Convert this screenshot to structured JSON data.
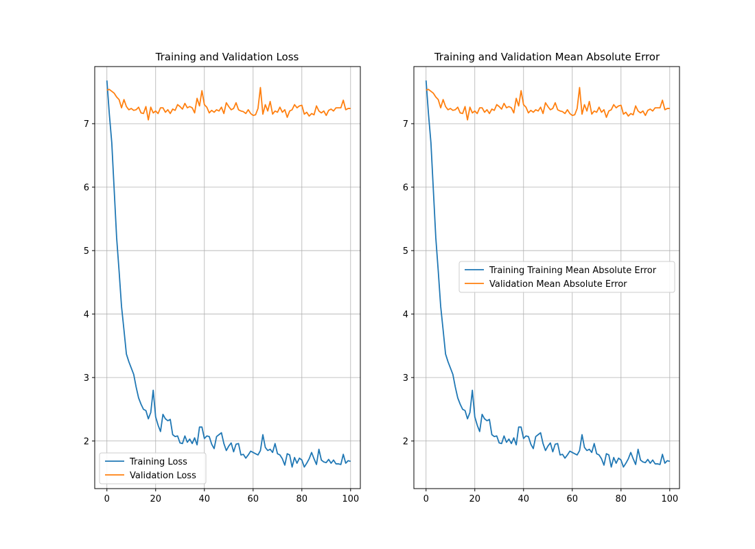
{
  "chart_data": [
    {
      "type": "line",
      "title": "Training and Validation Loss",
      "xlabel": "",
      "ylabel": "",
      "xlim": [
        -5,
        104
      ],
      "ylim": [
        1.25,
        7.9
      ],
      "xticks": [
        0,
        20,
        40,
        60,
        80,
        100
      ],
      "yticks": [
        2,
        3,
        4,
        5,
        6,
        7
      ],
      "grid": true,
      "legend_position": "lower-left",
      "series": [
        {
          "name": "Training Loss",
          "color": "#1f77b4",
          "x_start": 0,
          "values": [
            7.68,
            7.15,
            6.7,
            5.95,
            5.2,
            4.68,
            4.12,
            3.75,
            3.37,
            3.25,
            3.15,
            3.05,
            2.85,
            2.68,
            2.58,
            2.5,
            2.48,
            2.35,
            2.45,
            2.8,
            2.38,
            2.25,
            2.15,
            2.42,
            2.35,
            2.32,
            2.34,
            2.1,
            2.07,
            2.08,
            1.97,
            1.96,
            2.08,
            1.98,
            2.03,
            1.96,
            2.05,
            1.94,
            2.22,
            2.22,
            2.04,
            2.08,
            2.07,
            1.95,
            1.88,
            2.07,
            2.1,
            2.13,
            1.96,
            1.85,
            1.92,
            1.97,
            1.83,
            1.95,
            1.96,
            1.78,
            1.79,
            1.73,
            1.78,
            1.84,
            1.82,
            1.8,
            1.78,
            1.85,
            2.1,
            1.9,
            1.85,
            1.87,
            1.82,
            1.96,
            1.8,
            1.78,
            1.72,
            1.62,
            1.8,
            1.78,
            1.59,
            1.74,
            1.65,
            1.73,
            1.7,
            1.59,
            1.65,
            1.72,
            1.82,
            1.72,
            1.63,
            1.87,
            1.7,
            1.67,
            1.66,
            1.71,
            1.65,
            1.7,
            1.64,
            1.64,
            1.63,
            1.79,
            1.65,
            1.69,
            1.68
          ]
        },
        {
          "name": "Validation Loss",
          "color": "#ff7f0e",
          "x_start": 0,
          "values": [
            7.53,
            7.54,
            7.51,
            7.48,
            7.42,
            7.38,
            7.25,
            7.38,
            7.27,
            7.22,
            7.24,
            7.21,
            7.22,
            7.26,
            7.17,
            7.16,
            7.27,
            7.06,
            7.26,
            7.17,
            7.2,
            7.16,
            7.25,
            7.25,
            7.18,
            7.22,
            7.16,
            7.23,
            7.21,
            7.3,
            7.27,
            7.23,
            7.32,
            7.25,
            7.27,
            7.25,
            7.17,
            7.4,
            7.28,
            7.52,
            7.3,
            7.26,
            7.17,
            7.21,
            7.18,
            7.22,
            7.2,
            7.26,
            7.16,
            7.33,
            7.27,
            7.22,
            7.24,
            7.33,
            7.22,
            7.2,
            7.19,
            7.16,
            7.22,
            7.16,
            7.13,
            7.14,
            7.24,
            7.57,
            7.15,
            7.3,
            7.2,
            7.35,
            7.15,
            7.2,
            7.18,
            7.26,
            7.18,
            7.22,
            7.1,
            7.2,
            7.22,
            7.3,
            7.25,
            7.28,
            7.29,
            7.15,
            7.18,
            7.12,
            7.16,
            7.14,
            7.28,
            7.2,
            7.17,
            7.2,
            7.13,
            7.21,
            7.23,
            7.2,
            7.25,
            7.25,
            7.25,
            7.37,
            7.22,
            7.24,
            7.24
          ]
        }
      ],
      "legend": [
        "Training Loss",
        "Validation Loss"
      ]
    },
    {
      "type": "line",
      "title": "Training and Validation Mean Absolute Error",
      "xlabel": "",
      "ylabel": "",
      "xlim": [
        -5,
        104
      ],
      "ylim": [
        1.25,
        7.9
      ],
      "xticks": [
        0,
        20,
        40,
        60,
        80,
        100
      ],
      "yticks": [
        2,
        3,
        4,
        5,
        6,
        7
      ],
      "grid": true,
      "legend_position": "center-right",
      "series": [
        {
          "name": "Training Training Mean Absolute Error",
          "color": "#1f77b4",
          "x_start": 0,
          "values": [
            7.68,
            7.15,
            6.7,
            5.95,
            5.2,
            4.68,
            4.12,
            3.75,
            3.37,
            3.25,
            3.15,
            3.05,
            2.85,
            2.68,
            2.58,
            2.5,
            2.48,
            2.35,
            2.45,
            2.8,
            2.38,
            2.25,
            2.15,
            2.42,
            2.35,
            2.32,
            2.34,
            2.1,
            2.07,
            2.08,
            1.97,
            1.96,
            2.08,
            1.98,
            2.03,
            1.96,
            2.05,
            1.94,
            2.22,
            2.22,
            2.04,
            2.08,
            2.07,
            1.95,
            1.88,
            2.07,
            2.1,
            2.13,
            1.96,
            1.85,
            1.92,
            1.97,
            1.83,
            1.95,
            1.96,
            1.78,
            1.79,
            1.73,
            1.78,
            1.84,
            1.82,
            1.8,
            1.78,
            1.85,
            2.1,
            1.9,
            1.85,
            1.87,
            1.82,
            1.96,
            1.8,
            1.78,
            1.72,
            1.62,
            1.8,
            1.78,
            1.59,
            1.74,
            1.65,
            1.73,
            1.7,
            1.59,
            1.65,
            1.72,
            1.82,
            1.72,
            1.63,
            1.87,
            1.7,
            1.67,
            1.66,
            1.71,
            1.65,
            1.7,
            1.64,
            1.64,
            1.63,
            1.79,
            1.65,
            1.69,
            1.68
          ]
        },
        {
          "name": "Validation Mean Absolute Error",
          "color": "#ff7f0e",
          "x_start": 0,
          "values": [
            7.53,
            7.54,
            7.51,
            7.48,
            7.42,
            7.38,
            7.25,
            7.38,
            7.27,
            7.22,
            7.24,
            7.21,
            7.22,
            7.26,
            7.17,
            7.16,
            7.27,
            7.06,
            7.26,
            7.17,
            7.2,
            7.16,
            7.25,
            7.25,
            7.18,
            7.22,
            7.16,
            7.23,
            7.21,
            7.3,
            7.27,
            7.23,
            7.32,
            7.25,
            7.27,
            7.25,
            7.17,
            7.4,
            7.28,
            7.52,
            7.3,
            7.26,
            7.17,
            7.21,
            7.18,
            7.22,
            7.2,
            7.26,
            7.16,
            7.33,
            7.27,
            7.22,
            7.24,
            7.33,
            7.22,
            7.2,
            7.19,
            7.16,
            7.22,
            7.16,
            7.13,
            7.14,
            7.24,
            7.57,
            7.15,
            7.3,
            7.2,
            7.35,
            7.15,
            7.2,
            7.18,
            7.26,
            7.18,
            7.22,
            7.1,
            7.2,
            7.22,
            7.3,
            7.25,
            7.28,
            7.29,
            7.15,
            7.18,
            7.12,
            7.16,
            7.14,
            7.28,
            7.2,
            7.17,
            7.2,
            7.13,
            7.21,
            7.23,
            7.2,
            7.25,
            7.25,
            7.25,
            7.37,
            7.22,
            7.24,
            7.24
          ]
        }
      ],
      "legend": [
        "Training Training Mean Absolute Error",
        "Validation Mean Absolute Error"
      ]
    }
  ]
}
